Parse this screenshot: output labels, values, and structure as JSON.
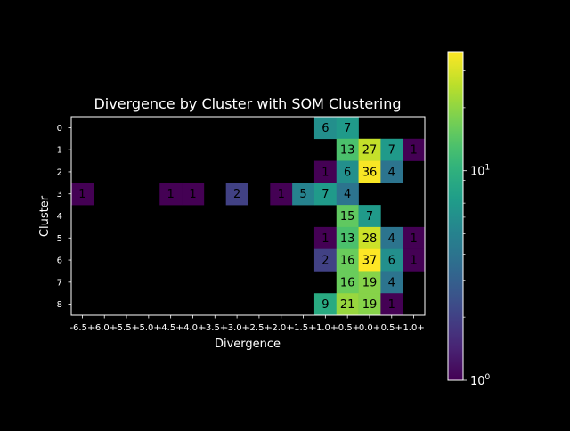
{
  "chart_data": {
    "type": "heatmap",
    "title": "Divergence by Cluster with SOM Clustering",
    "xlabel": "Divergence",
    "ylabel": "Cluster",
    "x_categories": [
      "-6.5+",
      "-6.0+",
      "-5.5+",
      "-5.0+",
      "-4.5+",
      "-4.0+",
      "-3.5+",
      "-3.0+",
      "-2.5+",
      "-2.0+",
      "-1.5+",
      "-1.0+",
      "-0.5+",
      "0.0+",
      "0.5+",
      "1.0+"
    ],
    "y_categories": [
      "0",
      "1",
      "2",
      "3",
      "4",
      "5",
      "6",
      "7",
      "8"
    ],
    "values": [
      [
        null,
        null,
        null,
        null,
        null,
        null,
        null,
        null,
        null,
        null,
        null,
        6,
        7,
        null,
        null,
        null
      ],
      [
        null,
        null,
        null,
        null,
        null,
        null,
        null,
        null,
        null,
        null,
        null,
        null,
        13,
        27,
        7,
        1
      ],
      [
        null,
        null,
        null,
        null,
        null,
        null,
        null,
        null,
        null,
        null,
        null,
        1,
        6,
        36,
        4,
        null
      ],
      [
        1,
        null,
        null,
        null,
        1,
        1,
        null,
        2,
        null,
        1,
        5,
        7,
        4,
        null,
        null,
        null
      ],
      [
        null,
        null,
        null,
        null,
        null,
        null,
        null,
        null,
        null,
        null,
        null,
        null,
        15,
        7,
        null,
        null
      ],
      [
        null,
        null,
        null,
        null,
        null,
        null,
        null,
        null,
        null,
        null,
        null,
        1,
        13,
        28,
        4,
        1
      ],
      [
        null,
        null,
        null,
        null,
        null,
        null,
        null,
        null,
        null,
        null,
        null,
        2,
        16,
        37,
        6,
        1
      ],
      [
        null,
        null,
        null,
        null,
        null,
        null,
        null,
        null,
        null,
        null,
        null,
        null,
        16,
        19,
        4,
        null
      ],
      [
        null,
        null,
        null,
        null,
        null,
        null,
        null,
        null,
        null,
        null,
        null,
        9,
        21,
        19,
        1,
        null
      ]
    ],
    "color_scale": "log",
    "colormap": "viridis",
    "vmin": 1,
    "vmax": 37,
    "colorbar": {
      "major_ticks": [
        {
          "value": 1,
          "base": "10",
          "exp": "0"
        },
        {
          "value": 10,
          "base": "10",
          "exp": "1"
        }
      ],
      "minor_ticks": [
        2,
        3,
        4,
        5,
        6,
        7,
        8,
        9,
        20,
        30
      ]
    },
    "background": "#000000",
    "foreground": "#ffffff",
    "label_color": "#000000"
  }
}
